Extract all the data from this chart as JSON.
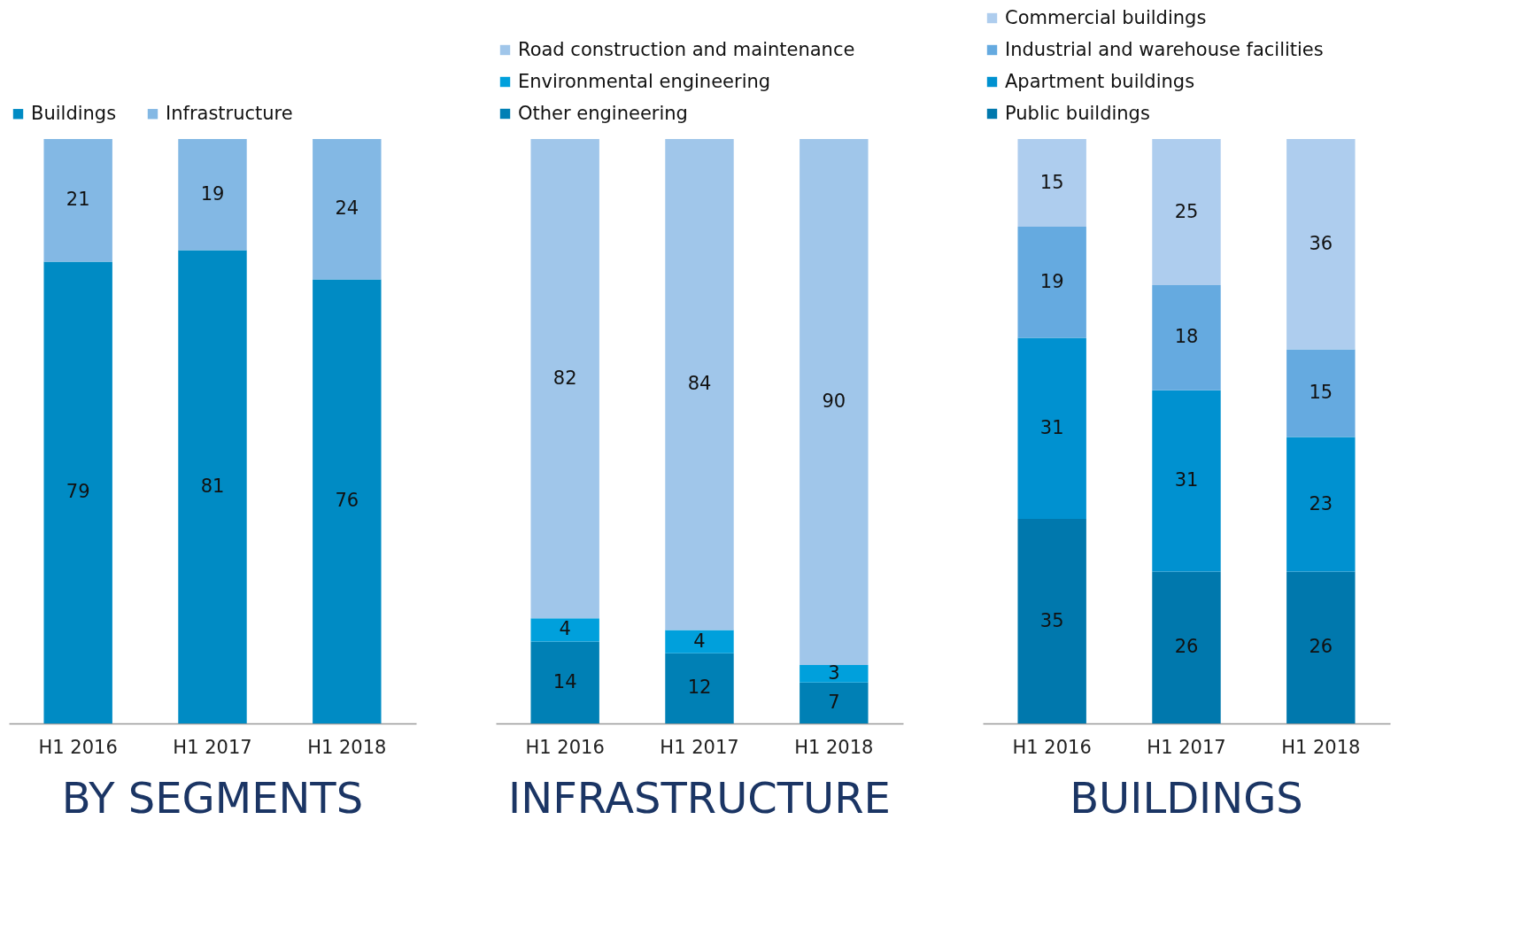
{
  "chart_data": [
    {
      "type": "bar",
      "title": "BY SEGMENTS",
      "categories": [
        "H1 2016",
        "H1 2017",
        "H1 2018"
      ],
      "stacked": true,
      "data_labels": true,
      "legend": "top",
      "series": [
        {
          "name": "Buildings",
          "color": "#008bc4",
          "values": [
            79,
            81,
            76
          ]
        },
        {
          "name": "Infrastructure",
          "color": "#83b8e4",
          "values": [
            21,
            19,
            24
          ]
        }
      ]
    },
    {
      "type": "bar",
      "title": "INFRASTRUCTURE",
      "categories": [
        "H1 2016",
        "H1 2017",
        "H1 2018"
      ],
      "stacked": true,
      "data_labels": true,
      "legend": "top",
      "series": [
        {
          "name": "Other engineering",
          "color": "#0080b5",
          "values": [
            14,
            12,
            7
          ]
        },
        {
          "name": "Environmental engineering",
          "color": "#00a0dc",
          "values": [
            4,
            4,
            3
          ]
        },
        {
          "name": "Road construction and maintenance",
          "color": "#a0c6ea",
          "values": [
            82,
            84,
            90
          ]
        }
      ]
    },
    {
      "type": "bar",
      "title": "BUILDINGS",
      "categories": [
        "H1 2016",
        "H1 2017",
        "H1 2018"
      ],
      "stacked": true,
      "data_labels": true,
      "legend": "top",
      "series": [
        {
          "name": "Public buildings",
          "color": "#0078ad",
          "values": [
            35,
            26,
            26
          ]
        },
        {
          "name": "Apartment buildings",
          "color": "#0091d0",
          "values": [
            31,
            31,
            23
          ]
        },
        {
          "name": "Industrial and warehouse facilities",
          "color": "#65aae0",
          "values": [
            19,
            18,
            15
          ]
        },
        {
          "name": "Commercial buildings",
          "color": "#aecdee",
          "values": [
            15,
            25,
            36
          ]
        }
      ]
    }
  ]
}
